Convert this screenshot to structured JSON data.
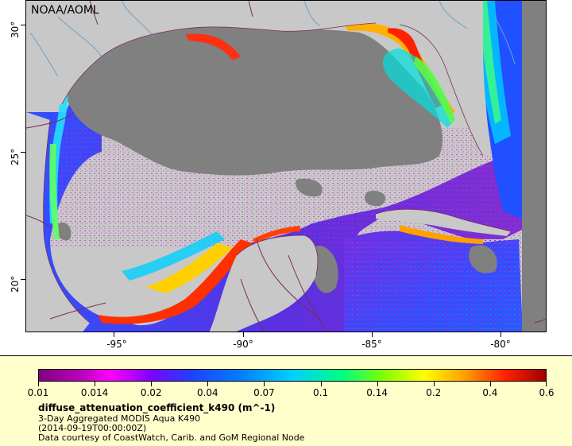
{
  "map": {
    "watermark": "NOAA/AOML",
    "lat_ticks": [
      "30°",
      "25°",
      "20°"
    ],
    "lon_ticks": [
      "-95°",
      "-90°",
      "-85°",
      "-80°"
    ],
    "land_color": "#c8c8c8",
    "nodata_color": "#808080",
    "coast_color": "#7a2a5a",
    "river_color": "#6aa2c8"
  },
  "legend": {
    "ticks": [
      "0.01",
      "0.014",
      "0.02",
      "0.04",
      "0.07",
      "0.1",
      "0.14",
      "0.2",
      "0.4",
      "0.6"
    ],
    "title": "diffuse_attenuation_coefficient_k490 (m^-1)",
    "line1": "3-Day Aggregated MODIS Aqua K490",
    "line2": "(2014-09-19T00:00:00Z)",
    "line3": "Data courtesy of CoastWatch, Carib. and GoM Regional Node"
  }
}
